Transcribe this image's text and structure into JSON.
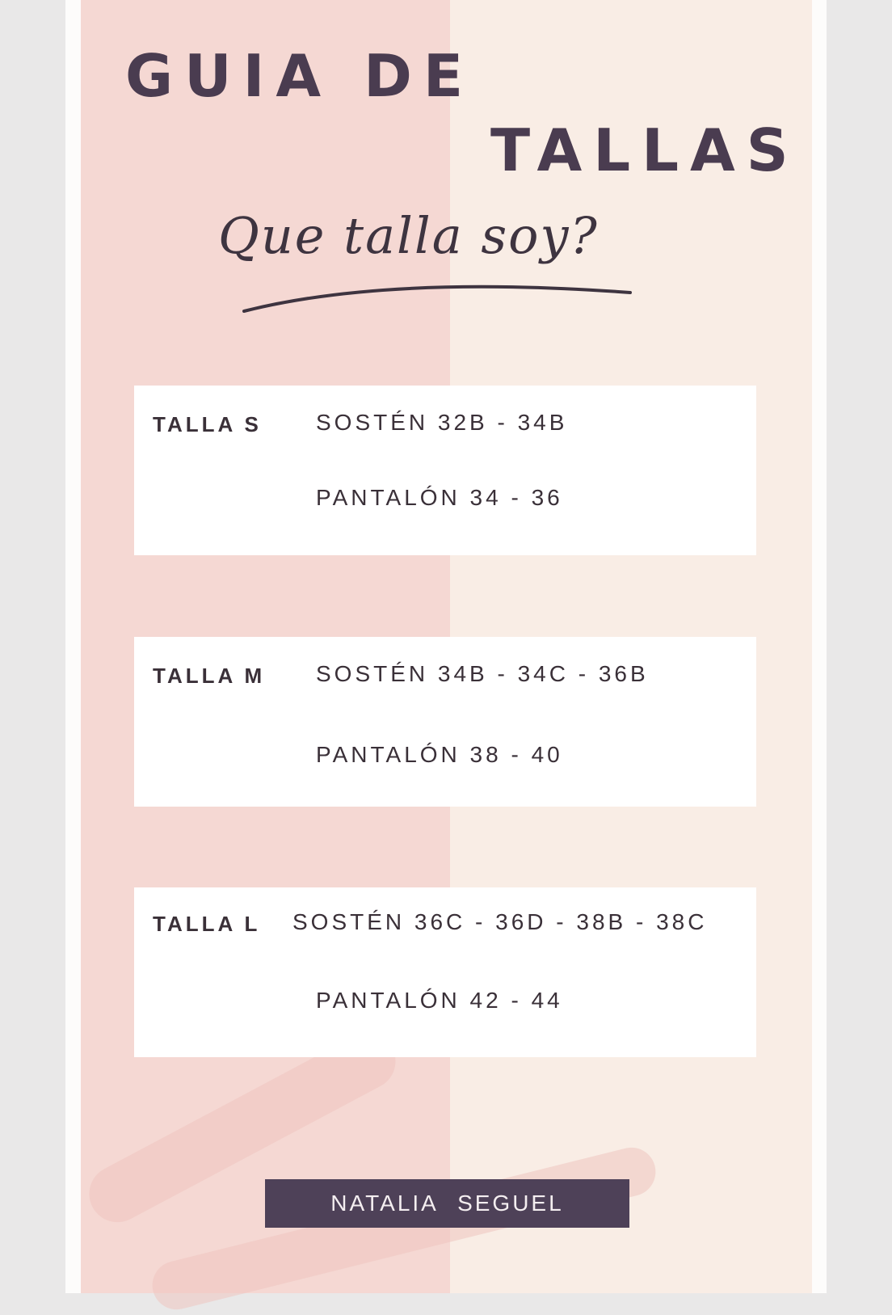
{
  "title": {
    "line1": "GUIA DE",
    "line2": "TALLAS"
  },
  "subtitle": "Que talla soy?",
  "sizes": [
    {
      "label": "TALLA S",
      "bra": "SOSTÉN 32B - 34B",
      "pants": "PANTALÓN 34 - 36"
    },
    {
      "label": "TALLA M",
      "bra": "SOSTÉN 34B - 34C - 36B",
      "pants": "PANTALÓN 38 - 40"
    },
    {
      "label": "TALLA L",
      "bra": "SOSTÉN 36C - 36D - 38B - 38C",
      "pants": "PANTALÓN 42 - 44"
    }
  ],
  "footer": "NATALIA SEGUEL",
  "colors": {
    "pink": "#f5d8d3",
    "cream": "#f9ede5",
    "dark": "#4a3c50"
  }
}
